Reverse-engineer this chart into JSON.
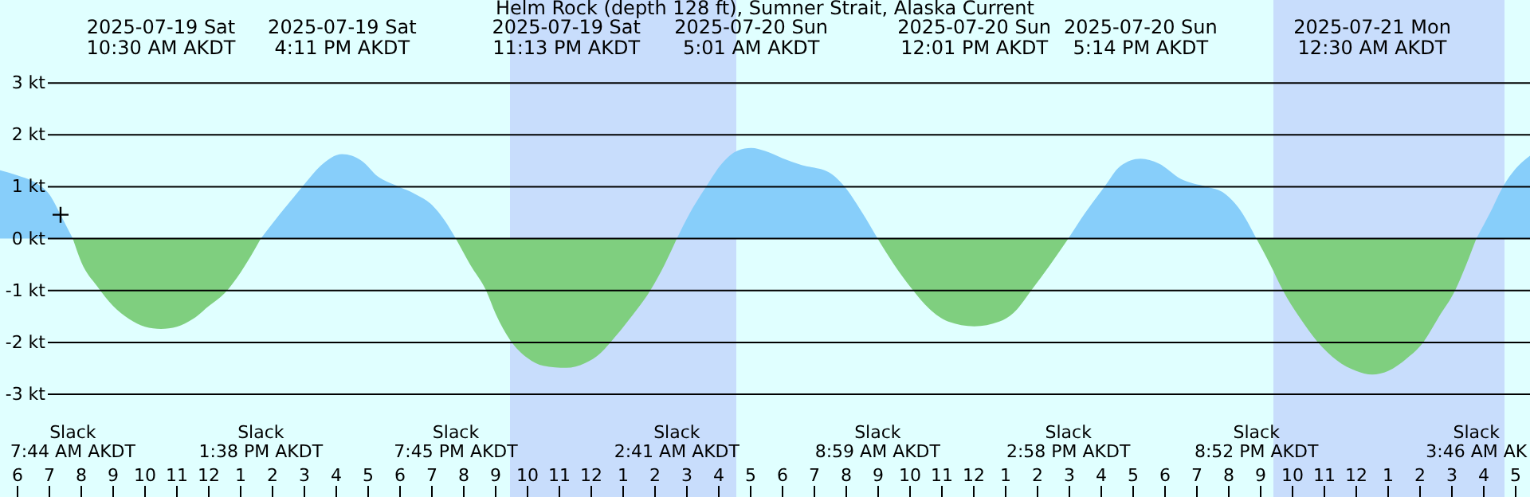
{
  "chart_data": {
    "type": "area",
    "title": "Helm Rock (depth 128 ft), Sumner Strait, Alaska Current",
    "xlim": [
      "2025-07-19T05:27",
      "2025-07-21T05:27"
    ],
    "ylim": [
      -4.98,
      4.6
    ],
    "yticks": [
      {
        "value": 3,
        "label": "3 kt"
      },
      {
        "value": 2,
        "label": "2 kt"
      },
      {
        "value": 1,
        "label": "1 kt"
      },
      {
        "value": 0,
        "label": "0 kt"
      },
      {
        "value": -1,
        "label": "-1 kt"
      },
      {
        "value": -2,
        "label": "-2 kt"
      },
      {
        "value": -3,
        "label": "-3 kt"
      }
    ],
    "xticks": [
      {
        "value": "2025-07-19T06:00",
        "label": "6"
      },
      {
        "value": "2025-07-19T07:00",
        "label": "7"
      },
      {
        "value": "2025-07-19T08:00",
        "label": "8"
      },
      {
        "value": "2025-07-19T09:00",
        "label": "9"
      },
      {
        "value": "2025-07-19T10:00",
        "label": "10"
      },
      {
        "value": "2025-07-19T11:00",
        "label": "11"
      },
      {
        "value": "2025-07-19T12:00",
        "label": "12"
      },
      {
        "value": "2025-07-19T13:00",
        "label": "1"
      },
      {
        "value": "2025-07-19T14:00",
        "label": "2"
      },
      {
        "value": "2025-07-19T15:00",
        "label": "3"
      },
      {
        "value": "2025-07-19T16:00",
        "label": "4"
      },
      {
        "value": "2025-07-19T17:00",
        "label": "5"
      },
      {
        "value": "2025-07-19T18:00",
        "label": "6"
      },
      {
        "value": "2025-07-19T19:00",
        "label": "7"
      },
      {
        "value": "2025-07-19T20:00",
        "label": "8"
      },
      {
        "value": "2025-07-19T21:00",
        "label": "9"
      },
      {
        "value": "2025-07-19T22:00",
        "label": "10"
      },
      {
        "value": "2025-07-19T23:00",
        "label": "11"
      },
      {
        "value": "2025-07-20T00:00",
        "label": "12"
      },
      {
        "value": "2025-07-20T01:00",
        "label": "1"
      },
      {
        "value": "2025-07-20T02:00",
        "label": "2"
      },
      {
        "value": "2025-07-20T03:00",
        "label": "3"
      },
      {
        "value": "2025-07-20T04:00",
        "label": "4"
      },
      {
        "value": "2025-07-20T05:00",
        "label": "5"
      },
      {
        "value": "2025-07-20T06:00",
        "label": "6"
      },
      {
        "value": "2025-07-20T07:00",
        "label": "7"
      },
      {
        "value": "2025-07-20T08:00",
        "label": "8"
      },
      {
        "value": "2025-07-20T09:00",
        "label": "9"
      },
      {
        "value": "2025-07-20T10:00",
        "label": "10"
      },
      {
        "value": "2025-07-20T11:00",
        "label": "11"
      },
      {
        "value": "2025-07-20T12:00",
        "label": "12"
      },
      {
        "value": "2025-07-20T13:00",
        "label": "1"
      },
      {
        "value": "2025-07-20T14:00",
        "label": "2"
      },
      {
        "value": "2025-07-20T15:00",
        "label": "3"
      },
      {
        "value": "2025-07-20T16:00",
        "label": "4"
      },
      {
        "value": "2025-07-20T17:00",
        "label": "5"
      },
      {
        "value": "2025-07-20T18:00",
        "label": "6"
      },
      {
        "value": "2025-07-20T19:00",
        "label": "7"
      },
      {
        "value": "2025-07-20T20:00",
        "label": "8"
      },
      {
        "value": "2025-07-20T21:00",
        "label": "9"
      },
      {
        "value": "2025-07-20T22:00",
        "label": "10"
      },
      {
        "value": "2025-07-20T23:00",
        "label": "11"
      },
      {
        "value": "2025-07-21T00:00",
        "label": "12"
      },
      {
        "value": "2025-07-21T01:00",
        "label": "1"
      },
      {
        "value": "2025-07-21T02:00",
        "label": "2"
      },
      {
        "value": "2025-07-21T03:00",
        "label": "3"
      },
      {
        "value": "2025-07-21T04:00",
        "label": "4"
      },
      {
        "value": "2025-07-21T05:00",
        "label": "5"
      }
    ],
    "grid": "y",
    "bands": [
      {
        "axis": "x",
        "from": "2025-07-19T21:27",
        "to": "2025-07-20T04:33",
        "color": "#c8ddfc"
      },
      {
        "axis": "x",
        "from": "2025-07-20T21:24",
        "to": "2025-07-21T04:39",
        "color": "#c8ddfc"
      }
    ],
    "series": [
      {
        "color": "#87cefa",
        "x": [
          "2025-07-19T05:27",
          "2025-07-19T06:00",
          "2025-07-19T06:30",
          "2025-07-19T07:00",
          "2025-07-19T07:24",
          "2025-07-19T07:44"
        ],
        "values": [
          1.32,
          1.22,
          1.1,
          0.85,
          0.4,
          0
        ]
      },
      {
        "color": "#7fcf7f",
        "x": [
          "2025-07-19T07:44",
          "2025-07-19T08:00",
          "2025-07-19T08:30",
          "2025-07-19T09:00",
          "2025-07-19T09:30",
          "2025-07-19T10:00",
          "2025-07-19T10:30",
          "2025-07-19T11:00",
          "2025-07-19T11:30",
          "2025-07-19T12:00",
          "2025-07-19T12:30",
          "2025-07-19T13:00",
          "2025-07-19T13:38"
        ],
        "values": [
          0,
          -0.45,
          -0.92,
          -1.3,
          -1.55,
          -1.7,
          -1.74,
          -1.7,
          -1.55,
          -1.3,
          -1.05,
          -0.65,
          0
        ]
      },
      {
        "color": "#87cefa",
        "x": [
          "2025-07-19T13:38",
          "2025-07-19T14:12",
          "2025-07-19T14:36",
          "2025-07-19T15:00",
          "2025-07-19T15:30",
          "2025-07-19T16:11",
          "2025-07-19T16:48",
          "2025-07-19T17:18",
          "2025-07-19T17:54",
          "2025-07-19T18:30",
          "2025-07-19T19:00",
          "2025-07-19T19:24",
          "2025-07-19T19:45"
        ],
        "values": [
          0,
          0.45,
          0.75,
          1.05,
          1.4,
          1.63,
          1.5,
          1.2,
          1.02,
          0.85,
          0.65,
          0.35,
          0
        ]
      },
      {
        "color": "#7fcf7f",
        "x": [
          "2025-07-19T19:45",
          "2025-07-19T20:12",
          "2025-07-19T20:42",
          "2025-07-19T21:00",
          "2025-07-19T21:27",
          "2025-07-19T22:00",
          "2025-07-19T22:30",
          "2025-07-19T23:13",
          "2025-07-19T23:48",
          "2025-07-20T00:18",
          "2025-07-20T00:36",
          "2025-07-20T01:12",
          "2025-07-20T01:51",
          "2025-07-20T02:18",
          "2025-07-20T02:41"
        ],
        "values": [
          0,
          -0.5,
          -1.0,
          -1.45,
          -1.95,
          -2.3,
          -2.45,
          -2.49,
          -2.4,
          -2.2,
          -2.0,
          -1.55,
          -1.0,
          -0.5,
          0
        ]
      },
      {
        "color": "#87cefa",
        "x": [
          "2025-07-20T02:41",
          "2025-07-20T03:06",
          "2025-07-20T03:36",
          "2025-07-20T04:06",
          "2025-07-20T04:36",
          "2025-07-20T05:01",
          "2025-07-20T05:27",
          "2025-07-20T06:00",
          "2025-07-20T06:36",
          "2025-07-20T07:27",
          "2025-07-20T07:57",
          "2025-07-20T08:30",
          "2025-07-20T08:59"
        ],
        "values": [
          0,
          0.5,
          1.0,
          1.45,
          1.7,
          1.75,
          1.69,
          1.55,
          1.42,
          1.28,
          1.0,
          0.5,
          0
        ]
      },
      {
        "color": "#7fcf7f",
        "x": [
          "2025-07-20T08:59",
          "2025-07-20T09:30",
          "2025-07-20T10:06",
          "2025-07-20T10:36",
          "2025-07-20T11:12",
          "2025-07-20T12:01",
          "2025-07-20T12:48",
          "2025-07-20T13:18",
          "2025-07-20T13:48",
          "2025-07-20T14:24",
          "2025-07-20T14:58"
        ],
        "values": [
          0,
          -0.5,
          -1.0,
          -1.35,
          -1.6,
          -1.69,
          -1.6,
          -1.4,
          -1.0,
          -0.5,
          0
        ]
      },
      {
        "color": "#87cefa",
        "x": [
          "2025-07-20T14:58",
          "2025-07-20T15:30",
          "2025-07-20T16:06",
          "2025-07-20T16:36",
          "2025-07-20T17:14",
          "2025-07-20T17:48",
          "2025-07-20T18:30",
          "2025-07-20T19:18",
          "2025-07-20T19:48",
          "2025-07-20T20:18",
          "2025-07-20T20:52"
        ],
        "values": [
          0,
          0.5,
          1.0,
          1.4,
          1.54,
          1.45,
          1.15,
          1.0,
          0.9,
          0.6,
          0
        ]
      },
      {
        "color": "#7fcf7f",
        "x": [
          "2025-07-20T20:52",
          "2025-07-20T21:18",
          "2025-07-20T21:42",
          "2025-07-20T22:12",
          "2025-07-20T22:48",
          "2025-07-20T23:24",
          "2025-07-21T00:00",
          "2025-07-21T00:30",
          "2025-07-21T01:00",
          "2025-07-21T01:36",
          "2025-07-21T02:06",
          "2025-07-21T02:36",
          "2025-07-21T03:06",
          "2025-07-21T03:27",
          "2025-07-21T03:46"
        ],
        "values": [
          0,
          -0.5,
          -1.0,
          -1.5,
          -2.0,
          -2.35,
          -2.55,
          -2.62,
          -2.55,
          -2.3,
          -2.0,
          -1.5,
          -1.0,
          -0.5,
          0
        ]
      },
      {
        "color": "#87cefa",
        "x": [
          "2025-07-21T03:46",
          "2025-07-21T04:12",
          "2025-07-21T04:36",
          "2025-07-21T05:00",
          "2025-07-21T05:27"
        ],
        "values": [
          0,
          0.5,
          1.0,
          1.35,
          1.6
        ]
      },
      {
        "type": "scatter",
        "marker": "cross",
        "color": "#000000",
        "x": [
          "2025-07-19T07:21"
        ],
        "values": [
          0.46
        ]
      }
    ],
    "annotations": [
      "2025-07-19 Sat\n10:30 AM AKDT",
      "2025-07-19 Sat\n4:11 PM AKDT",
      "2025-07-19 Sat\n11:13 PM AKDT",
      "2025-07-20 Sun\n5:01 AM AKDT",
      "2025-07-20 Sun\n12:01 PM AKDT",
      "2025-07-20 Sun\n5:14 PM AKDT",
      "2025-07-21 Mon\n12:30 AM AKDT",
      "Slack\n7:44 AM AKDT",
      "Slack\n1:38 PM AKDT",
      "Slack\n7:45 PM AKDT",
      "Slack\n2:41 AM AKDT",
      "Slack\n8:59 AM AKDT",
      "Slack\n2:58 PM AKDT",
      "Slack\n8:52 PM AKDT",
      "Slack\n3:46 AM AK"
    ]
  }
}
